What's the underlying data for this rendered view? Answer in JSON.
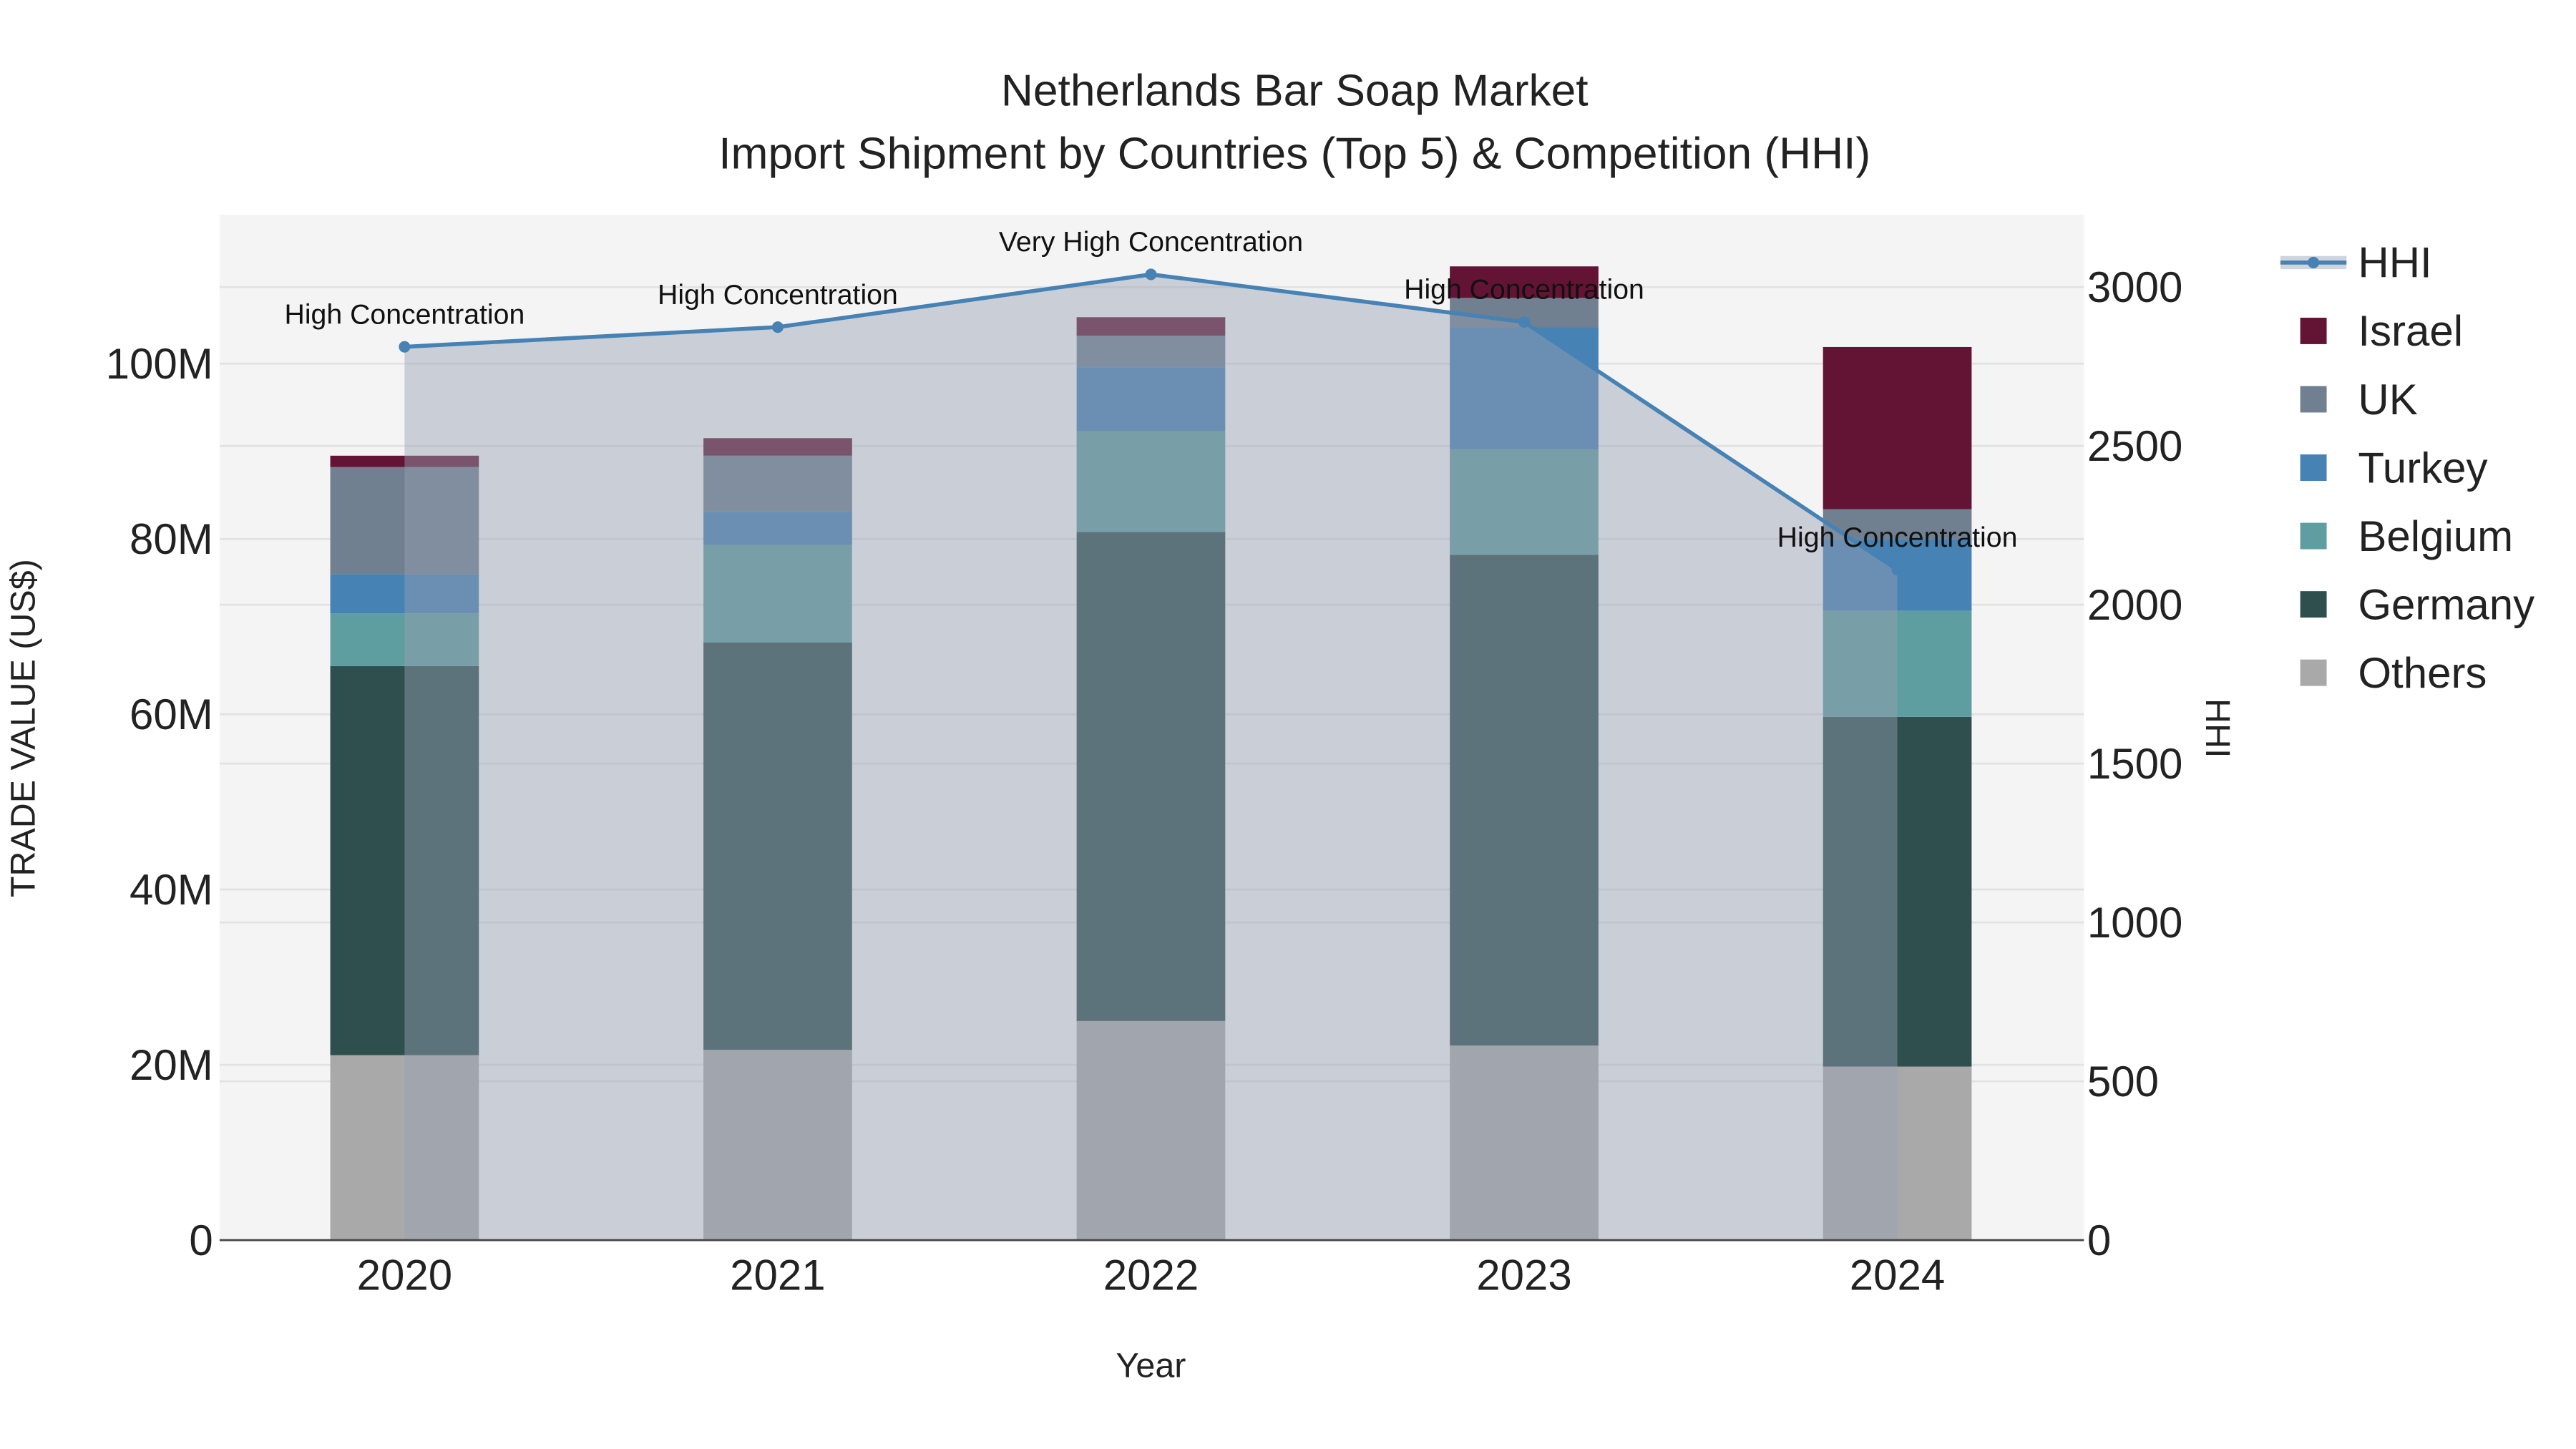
{
  "chart_data": {
    "type": "bar",
    "title": "Netherlands Bar Soap Market",
    "subtitle": "Import Shipment by Countries (Top 5) & Competition (HHI)",
    "xlabel": "Year",
    "ylabel": "TRADE VALUE (US$)",
    "y2label": "HHI",
    "categories": [
      "2020",
      "2021",
      "2022",
      "2023",
      "2024"
    ],
    "ylim": [
      0,
      117
    ],
    "y_unit": "M",
    "yticks": [
      0,
      20,
      40,
      60,
      80,
      100
    ],
    "ytick_labels": [
      "0",
      "20M",
      "40M",
      "60M",
      "80M",
      "100M"
    ],
    "y2lim": [
      0,
      3228
    ],
    "y2ticks": [
      0,
      500,
      1000,
      1500,
      2000,
      2500,
      3000
    ],
    "y2tick_labels": [
      "0",
      "500",
      "1000",
      "1500",
      "2000",
      "2500",
      "3000"
    ],
    "grid": true,
    "legend_position": "right",
    "series": [
      {
        "name": "Others",
        "color": "#a9a9a9",
        "values": [
          21.1,
          21.7,
          25.0,
          22.2,
          19.8
        ]
      },
      {
        "name": "Germany",
        "color": "#2f4f4f",
        "values": [
          44.4,
          46.5,
          55.8,
          56.0,
          39.9
        ]
      },
      {
        "name": "Belgium",
        "color": "#5f9ea0",
        "values": [
          6.0,
          11.1,
          11.5,
          12.0,
          12.1
        ]
      },
      {
        "name": "Turkey",
        "color": "#4682b4",
        "values": [
          4.5,
          3.8,
          7.3,
          13.9,
          8.2
        ]
      },
      {
        "name": "UK",
        "color": "#708090",
        "values": [
          12.2,
          6.4,
          3.6,
          3.4,
          3.4
        ]
      },
      {
        "name": "Israel",
        "color": "#631435",
        "values": [
          1.3,
          2.0,
          2.1,
          3.6,
          18.5
        ]
      }
    ],
    "hhi": {
      "name": "HHI",
      "color": "#4682b4",
      "values": [
        2812,
        2874,
        3040,
        2890,
        2110
      ],
      "annotations": [
        "High Concentration",
        "High Concentration",
        "Very High Concentration",
        "High Concentration",
        "High Concentration"
      ]
    },
    "legend_order": [
      "HHI",
      "Israel",
      "UK",
      "Turkey",
      "Belgium",
      "Germany",
      "Others"
    ]
  }
}
